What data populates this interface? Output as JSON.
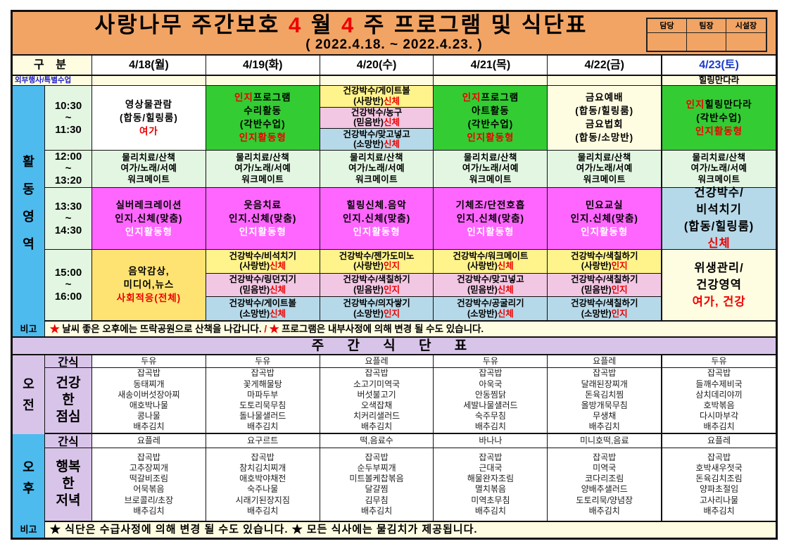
{
  "title": {
    "main": {
      "lines": [
        [
          {
            "t": "사랑나무 주간보호 "
          },
          {
            "t": "4",
            "c": "red"
          },
          {
            "t": " 월 "
          },
          {
            "t": "4",
            "c": "red"
          },
          {
            "t": " 주 프로그램 및 식단표"
          }
        ]
      ]
    },
    "subtitle": "( 2022.4.18. ~ 2022.4.23. )",
    "sign_labels": [
      "담당",
      "팀장",
      "시설장"
    ]
  },
  "header": {
    "gubun": "구 분",
    "days": [
      "4/18(월)",
      "4/19(화)",
      "4/20(수)",
      "4/21(목)",
      "4/22(금)",
      "4/23(토)"
    ]
  },
  "special": {
    "label": "외부행사/특별수업",
    "cells": [
      "",
      "",
      "",
      "",
      "",
      "힐링만다라"
    ]
  },
  "activity": {
    "side_label": "활\n동\n영\n역",
    "rows": [
      {
        "time": "10:30\n~\n11:30",
        "cells": [
          {
            "bg": "white",
            "lines": [
              [
                {
                  "t": "영상물관람"
                }
              ],
              [
                {
                  "t": "(합동/힐링룸)"
                }
              ],
              [
                {
                  "t": "여가",
                  "c": "red"
                }
              ]
            ]
          },
          {
            "bg": "green",
            "lines": [
              [
                {
                  "t": "인지",
                  "c": "red"
                },
                {
                  "t": "프로그램"
                }
              ],
              [
                {
                  "t": "수리활동"
                }
              ],
              [
                {
                  "t": "(각반수업)"
                }
              ],
              [
                {
                  "t": "인지활동형",
                  "c": "red"
                }
              ]
            ]
          },
          {
            "sub": [
              {
                "bg": "yellow",
                "lines": [
                  [
                    {
                      "t": "건강박수/게이트볼"
                    }
                  ],
                  [
                    {
                      "t": "(사랑반)"
                    },
                    {
                      "t": "신체",
                      "c": "red"
                    }
                  ]
                ]
              },
              {
                "bg": "pink",
                "lines": [
                  [
                    {
                      "t": "건강박수/농구"
                    }
                  ],
                  [
                    {
                      "t": "(믿음반)"
                    },
                    {
                      "t": "신체",
                      "c": "red"
                    }
                  ]
                ]
              },
              {
                "bg": "lblue",
                "lines": [
                  [
                    {
                      "t": "건강박수/맞고넣고"
                    }
                  ],
                  [
                    {
                      "t": "(소망반)"
                    },
                    {
                      "t": "신체",
                      "c": "red"
                    }
                  ]
                ]
              }
            ]
          },
          {
            "bg": "green",
            "lines": [
              [
                {
                  "t": "인지",
                  "c": "red"
                },
                {
                  "t": "프로그램"
                }
              ],
              [
                {
                  "t": "아트활동"
                }
              ],
              [
                {
                  "t": "(각반수업)"
                }
              ],
              [
                {
                  "t": "인지활동형",
                  "c": "red"
                }
              ]
            ]
          },
          {
            "bg": "cream",
            "lines": [
              [
                {
                  "t": "금요예배"
                }
              ],
              [
                {
                  "t": "(합동/힐링룸)"
                }
              ],
              [
                {
                  "t": "금요법회"
                }
              ],
              [
                {
                  "t": "(합동/소망반)"
                }
              ]
            ]
          },
          {
            "bg": "green",
            "lines": [
              [
                {
                  "t": "인지",
                  "c": "red"
                },
                {
                  "t": "힐링만다라"
                }
              ],
              [
                {
                  "t": "(각반수업)"
                }
              ],
              [
                {
                  "t": "인지활동형",
                  "c": "red"
                }
              ]
            ]
          }
        ]
      },
      {
        "time": "12:00\n~\n13:20",
        "cells": [
          {
            "bg": "lgreen",
            "lines": [
              [
                {
                  "t": "물리치료/산책"
                }
              ],
              [
                {
                  "t": "여가/노래/서예"
                }
              ],
              [
                {
                  "t": "워크메이트"
                }
              ]
            ]
          },
          {
            "bg": "lgreen",
            "lines": [
              [
                {
                  "t": "물리치료/산책"
                }
              ],
              [
                {
                  "t": "여가/노래/서예"
                }
              ],
              [
                {
                  "t": "워크메이트"
                }
              ]
            ]
          },
          {
            "bg": "lgreen",
            "lines": [
              [
                {
                  "t": "물리치료/산책"
                }
              ],
              [
                {
                  "t": "여가/노래/서예"
                }
              ],
              [
                {
                  "t": "워크메이트"
                }
              ]
            ]
          },
          {
            "bg": "lgreen",
            "lines": [
              [
                {
                  "t": "물리치료/산책"
                }
              ],
              [
                {
                  "t": "여가/노래/서예"
                }
              ],
              [
                {
                  "t": "워크메이트"
                }
              ]
            ]
          },
          {
            "bg": "lgreen",
            "lines": [
              [
                {
                  "t": "물리치료/산책"
                }
              ],
              [
                {
                  "t": "여가/노래/서예"
                }
              ],
              [
                {
                  "t": "워크메이트"
                }
              ]
            ]
          },
          {
            "bg": "lgreen",
            "lines": [
              [
                {
                  "t": "물리치료/산책"
                }
              ],
              [
                {
                  "t": "여가/노래/서예"
                }
              ],
              [
                {
                  "t": "워크메이트"
                }
              ]
            ]
          }
        ]
      },
      {
        "time": "13:30\n~\n14:30",
        "cells": [
          {
            "bg": "magenta",
            "lines": [
              [
                {
                  "t": "실버레크레이션"
                }
              ],
              [
                {
                  "t": "인지.신체(맞춤)"
                }
              ],
              [
                {
                  "t": "인지활동형",
                  "c": "white"
                }
              ]
            ]
          },
          {
            "bg": "magenta",
            "lines": [
              [
                {
                  "t": "웃음치료"
                }
              ],
              [
                {
                  "t": "인지.신체(맞춤)"
                }
              ],
              [
                {
                  "t": "인지활동형",
                  "c": "white"
                }
              ]
            ]
          },
          {
            "bg": "magenta",
            "lines": [
              [
                {
                  "t": "힐링신체.음악"
                }
              ],
              [
                {
                  "t": "인지.신체(맞춤)"
                }
              ],
              [
                {
                  "t": "인지활동형",
                  "c": "white"
                }
              ]
            ]
          },
          {
            "bg": "magenta",
            "lines": [
              [
                {
                  "t": "기체조/단전호흡"
                }
              ],
              [
                {
                  "t": "인지.신체(맞춤)"
                }
              ],
              [
                {
                  "t": "인지활동형",
                  "c": "white"
                }
              ]
            ]
          },
          {
            "bg": "magenta",
            "lines": [
              [
                {
                  "t": "민요교실"
                }
              ],
              [
                {
                  "t": "인지.신체(맞춤)"
                }
              ],
              [
                {
                  "t": "인지활동형",
                  "c": "white"
                }
              ]
            ]
          },
          {
            "bg": "lblue",
            "big": true,
            "lines": [
              [
                {
                  "t": "건강박수/"
                }
              ],
              [
                {
                  "t": "비석치기"
                }
              ],
              [
                {
                  "t": "(합동/힐링룸)"
                }
              ],
              [
                {
                  "t": "신체",
                  "c": "red"
                }
              ]
            ]
          }
        ]
      },
      {
        "time": "15:00\n~\n16:00",
        "cells": [
          {
            "bg": "gold",
            "lines": [
              [
                {
                  "t": "음악감상,"
                }
              ],
              [
                {
                  "t": "미디어,뉴스"
                }
              ],
              [
                {
                  "t": "사회적응(전체)",
                  "c": "red"
                }
              ]
            ]
          },
          {
            "sub": [
              {
                "bg": "yellow",
                "lines": [
                  [
                    {
                      "t": "건강박수/비석치기"
                    }
                  ],
                  [
                    {
                      "t": "(사랑반)"
                    },
                    {
                      "t": "신체",
                      "c": "red"
                    }
                  ]
                ]
              },
              {
                "bg": "pink",
                "lines": [
                  [
                    {
                      "t": "건강박수/링던지기"
                    }
                  ],
                  [
                    {
                      "t": "(믿음반)"
                    },
                    {
                      "t": "신체",
                      "c": "red"
                    }
                  ]
                ]
              },
              {
                "bg": "lblue",
                "lines": [
                  [
                    {
                      "t": "건강박수/게이트볼"
                    }
                  ],
                  [
                    {
                      "t": "(소망반)"
                    },
                    {
                      "t": "신체",
                      "c": "red"
                    }
                  ]
                ]
              }
            ]
          },
          {
            "sub": [
              {
                "bg": "yellow",
                "lines": [
                  [
                    {
                      "t": "건강박수/젠가도미노"
                    }
                  ],
                  [
                    {
                      "t": "(사랑반)"
                    },
                    {
                      "t": "인지",
                      "c": "red"
                    }
                  ]
                ]
              },
              {
                "bg": "pink",
                "lines": [
                  [
                    {
                      "t": "건강박수/색칠하기"
                    }
                  ],
                  [
                    {
                      "t": "(믿음반)"
                    },
                    {
                      "t": "인지",
                      "c": "red"
                    }
                  ]
                ]
              },
              {
                "bg": "lblue",
                "lines": [
                  [
                    {
                      "t": "건강박수/의자쌓기"
                    }
                  ],
                  [
                    {
                      "t": "(소망반)"
                    },
                    {
                      "t": "인지",
                      "c": "red"
                    }
                  ]
                ]
              }
            ]
          },
          {
            "sub": [
              {
                "bg": "yellow",
                "lines": [
                  [
                    {
                      "t": "건강박수/워크메이트"
                    }
                  ],
                  [
                    {
                      "t": "(사랑반)"
                    },
                    {
                      "t": "신체",
                      "c": "red"
                    }
                  ]
                ]
              },
              {
                "bg": "pink",
                "lines": [
                  [
                    {
                      "t": "건강박수/맞고넣고"
                    }
                  ],
                  [
                    {
                      "t": "(믿음반)"
                    },
                    {
                      "t": "신체",
                      "c": "red"
                    }
                  ]
                ]
              },
              {
                "bg": "lblue",
                "lines": [
                  [
                    {
                      "t": "건강박수/공굴리기"
                    }
                  ],
                  [
                    {
                      "t": "(소망반)"
                    },
                    {
                      "t": "신체",
                      "c": "red"
                    }
                  ]
                ]
              }
            ]
          },
          {
            "sub": [
              {
                "bg": "yellow",
                "lines": [
                  [
                    {
                      "t": "건강박수/색칠하기"
                    }
                  ],
                  [
                    {
                      "t": "(사랑반)"
                    },
                    {
                      "t": "인지",
                      "c": "red"
                    }
                  ]
                ]
              },
              {
                "bg": "pink",
                "lines": [
                  [
                    {
                      "t": "건강박수/색칠하기"
                    }
                  ],
                  [
                    {
                      "t": "(믿음반)"
                    },
                    {
                      "t": "인지",
                      "c": "red"
                    }
                  ]
                ]
              },
              {
                "bg": "lblue",
                "lines": [
                  [
                    {
                      "t": "건강박수/색칠하기"
                    }
                  ],
                  [
                    {
                      "t": "(소망반)"
                    },
                    {
                      "t": "인지",
                      "c": "red"
                    }
                  ]
                ]
              }
            ]
          },
          {
            "bg": "cream",
            "big": true,
            "lines": [
              [
                {
                  "t": "위생관리/"
                }
              ],
              [
                {
                  "t": "건강영역"
                }
              ],
              [
                {
                  "t": "여가, 건강",
                  "c": "red"
                }
              ]
            ]
          }
        ]
      }
    ]
  },
  "remarks": [
    {
      "label": "비고",
      "segments": [
        {
          "t": "★",
          "c": "red"
        },
        {
          "t": " 날씨 좋은 오후에는 뜨락공원으로 산책을 나갑니다. "
        },
        {
          "t": "/ ",
          "c": "red"
        },
        {
          "t": "★",
          "c": "red"
        },
        {
          "t": " 프로그램은 내부사정에 의해 변경 될 수도 있습니다."
        }
      ]
    },
    {
      "label": "비고",
      "segments": [
        {
          "t": "★ 식단은 수급사정에 의해 변경 될 수도 있습니다. ★ 모든 식사에는 물김치가 제공됩니다."
        }
      ]
    }
  ],
  "menu": {
    "header": "주 간 식 단 표",
    "morning": {
      "side": "오\n전",
      "snack_label": "간식",
      "snack": [
        "두유",
        "두유",
        "요플레",
        "두유",
        "요플레",
        "두유"
      ],
      "meal_label": "건강\n한\n점심",
      "meals": [
        "잡곡밥\n동태찌개\n새송이버섯장아찌\n애호박나물\n콩나물\n배추김치",
        "잡곡밥\n꽃게해물탕\n마파두부\n도토리묵무침\n돌나물샐러드\n배추김치",
        "잡곡밥\n소고기미역국\n버섯불고기\n오색잡채\n치커리샐러드\n배추김치",
        "잡곡밥\n아욱국\n안동찜닭\n세발나물샐러드\n숙주무침\n배추김치",
        "잡곡밥\n달래된장찌개\n돈육김치찜\n올방개묵무침\n무생채\n배추김치",
        "잡곡밥\n들깨수제비국\n삼치데리야끼\n호박볶음\n다시마부각\n배추김치"
      ]
    },
    "afternoon": {
      "side": "오\n후",
      "snack_label": "간식",
      "snack": [
        "요플레",
        "요구르트",
        "떡,음료수",
        "바나나",
        "미니호떡,음료",
        "요플레"
      ],
      "meal_label": "행복\n한\n저녁",
      "meals": [
        "잡곡밥\n고추장찌개\n떡갈비조림\n어묵볶음\n브로콜리/초장\n배추김치",
        "잡곡밥\n참치김치찌개\n애호박야채전\n숙주나물\n시래기된장지짐\n배추김치",
        "잡곡밥\n순두부찌개\n미트볼케찹볶음\n달걀찜\n김무침\n배추김치",
        "잡곡밥\n근대국\n해물완자조림\n멸치볶음\n미역초무침\n배추김치",
        "잡곡밥\n미역국\n코다리조림\n양배추샐러드\n도토리묵/양념장\n배추김치",
        "잡곡밥\n호박새우젓국\n돈육김치조림\n양파초절임\n고사리나물\n배추김치"
      ]
    }
  },
  "colors": {
    "accent_orange": "#f2a464",
    "green": "#33cc33",
    "magenta": "#ff66ff",
    "sky_blue": "#4dbbee",
    "lavender": "#d9c4e9",
    "red_text": "#ee0000",
    "saturday_blue": "#1a3acc"
  }
}
